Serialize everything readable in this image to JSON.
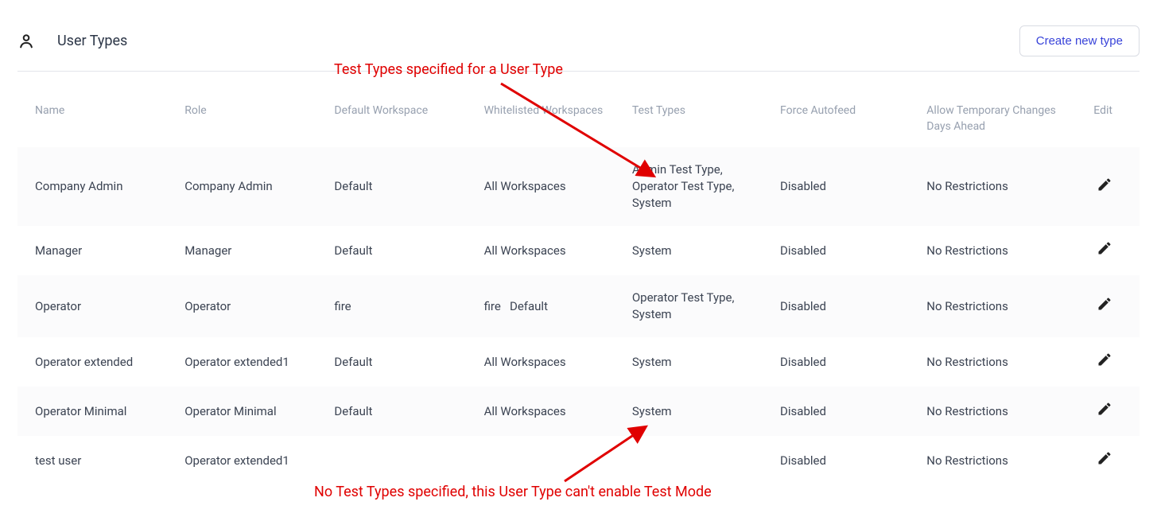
{
  "page": {
    "title": "User Types",
    "create_button": "Create new type"
  },
  "annotations": {
    "top_text": "Test Types specified for a User Type",
    "bottom_text": "No Test Types specified, this User Type can't enable Test Mode",
    "color": "#e00000"
  },
  "table": {
    "columns": {
      "name": "Name",
      "role": "Role",
      "default_workspace": "Default Workspace",
      "whitelisted_workspaces": "Whitelisted Workspaces",
      "test_types": "Test Types",
      "force_autofeed": "Force Autofeed",
      "allow_changes": "Allow Temporary Changes Days Ahead",
      "edit": "Edit"
    },
    "rows": [
      {
        "name": "Company Admin",
        "role": "Company Admin",
        "default_workspace": "Default",
        "whitelisted_workspaces": "All Workspaces",
        "test_types": "Admin Test Type, Operator Test Type, System",
        "force_autofeed": "Disabled",
        "allow_changes": "No Restrictions"
      },
      {
        "name": "Manager",
        "role": "Manager",
        "default_workspace": "Default",
        "whitelisted_workspaces": "All Workspaces",
        "test_types": "System",
        "force_autofeed": "Disabled",
        "allow_changes": "No Restrictions"
      },
      {
        "name": "Operator",
        "role": "Operator",
        "default_workspace": "fire",
        "whitelisted_workspaces": "fire   Default",
        "test_types": "Operator Test Type, System",
        "force_autofeed": "Disabled",
        "allow_changes": "No Restrictions"
      },
      {
        "name": "Operator extended",
        "role": "Operator extended1",
        "default_workspace": "Default",
        "whitelisted_workspaces": "All Workspaces",
        "test_types": "System",
        "force_autofeed": "Disabled",
        "allow_changes": "No Restrictions"
      },
      {
        "name": "Operator Minimal",
        "role": "Operator Minimal",
        "default_workspace": "Default",
        "whitelisted_workspaces": "All Workspaces",
        "test_types": "System",
        "force_autofeed": "Disabled",
        "allow_changes": "No Restrictions"
      },
      {
        "name": "test user",
        "role": "Operator extended1",
        "default_workspace": "",
        "whitelisted_workspaces": "",
        "test_types": "",
        "force_autofeed": "Disabled",
        "allow_changes": "No Restrictions"
      }
    ]
  },
  "colors": {
    "header_text": "#97a0af",
    "body_text": "#3b4352",
    "row_odd_bg": "#fbfbfc",
    "row_even_bg": "#ffffff",
    "button_text": "#3742d9",
    "button_border": "#d9dce3",
    "divider": "#e2e5ea"
  }
}
